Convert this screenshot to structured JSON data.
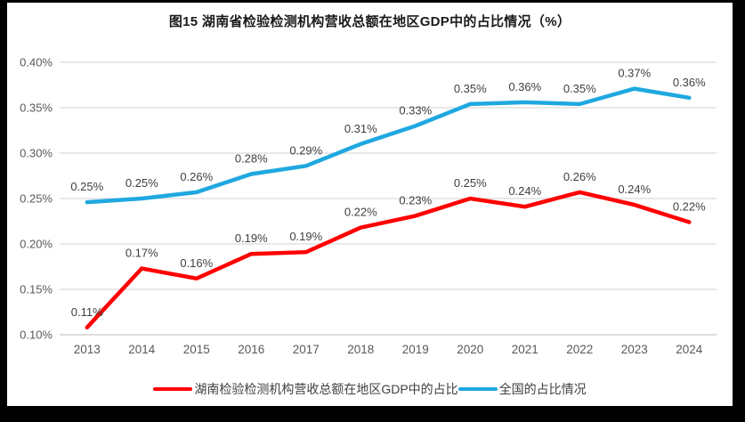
{
  "frame": {
    "border_color": "#000000",
    "background": "#ffffff"
  },
  "title": "图15 湖南省检验检测机构营收总额在地区GDP中的占比情况（%）",
  "legend": {
    "items": [
      {
        "label": "湖南检验检测机构营收总额在地区GDP中的占比",
        "color": "#ff0000"
      },
      {
        "label": "全国的占比情况",
        "color": "#1fa8e0"
      }
    ]
  },
  "chart_data": {
    "type": "line",
    "title": "图15 湖南省检验检测机构营收总额在地区GDP中的占比情况（%）",
    "categories": [
      "2013",
      "2014",
      "2015",
      "2016",
      "2017",
      "2018",
      "2019",
      "2020",
      "2021",
      "2022",
      "2023",
      "2024"
    ],
    "unit": "%",
    "grid": true,
    "legend_position": "bottom",
    "y_axis": {
      "min": 0.1,
      "max": 0.4,
      "ticks": [
        {
          "label": "0.40%",
          "value": 0.4
        },
        {
          "label": "0.35%",
          "value": 0.35
        },
        {
          "label": "0.30%",
          "value": 0.3
        },
        {
          "label": "0.25%",
          "value": 0.25
        },
        {
          "label": "0.20%",
          "value": 0.2
        },
        {
          "label": "0.15%",
          "value": 0.15
        },
        {
          "label": "0.10%",
          "value": 0.1
        }
      ]
    },
    "series": [
      {
        "name": "湖南检验检测机构营收总额在地区GDP中的占比",
        "color": "#ff0000",
        "labels": [
          "0.11%",
          "0.17%",
          "0.16%",
          "0.19%",
          "0.19%",
          "0.22%",
          "0.23%",
          "0.25%",
          "0.24%",
          "0.26%",
          "0.24%",
          "0.22%"
        ],
        "values": [
          0.108,
          0.173,
          0.162,
          0.189,
          0.191,
          0.218,
          0.231,
          0.25,
          0.241,
          0.257,
          0.243,
          0.224
        ]
      },
      {
        "name": "全国的占比情况",
        "color": "#1fa8e0",
        "labels": [
          "0.25%",
          "0.25%",
          "0.26%",
          "0.28%",
          "0.29%",
          "0.31%",
          "0.33%",
          "0.35%",
          "0.36%",
          "0.35%",
          "0.37%",
          "0.36%"
        ],
        "values": [
          0.246,
          0.25,
          0.257,
          0.277,
          0.286,
          0.31,
          0.33,
          0.354,
          0.356,
          0.354,
          0.371,
          0.361
        ]
      }
    ]
  }
}
